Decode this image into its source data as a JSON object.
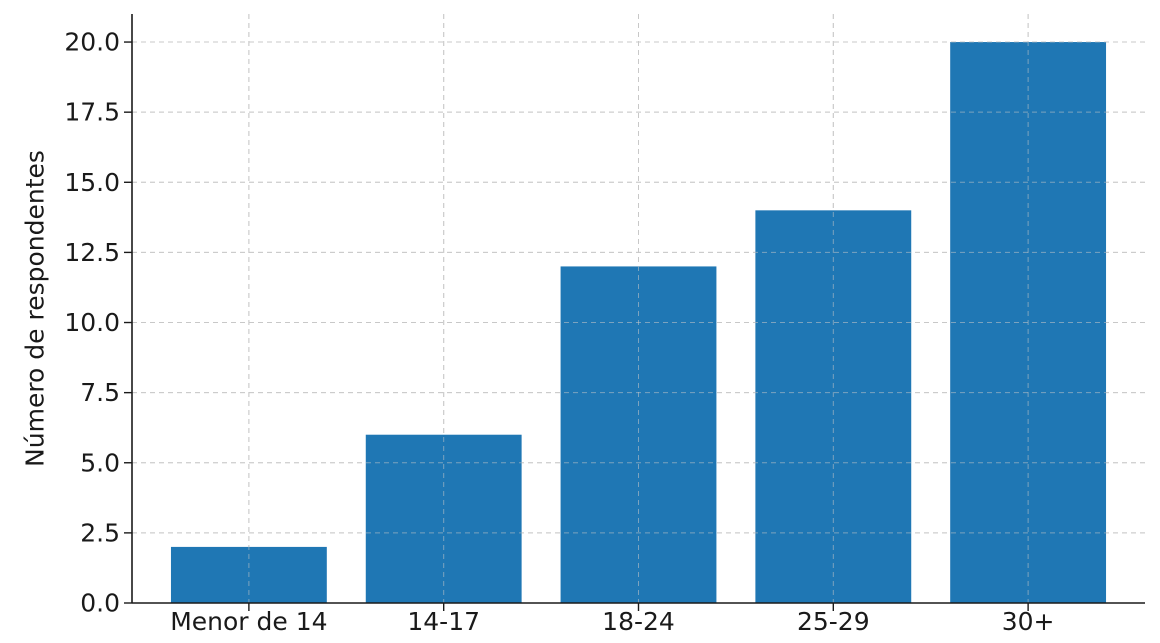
{
  "chart_data": {
    "type": "bar",
    "title": "",
    "xlabel": "",
    "ylabel": "Número de respondentes",
    "categories": [
      "Menor de 14",
      "14-17",
      "18-24",
      "25-29",
      "30+"
    ],
    "values": [
      2,
      6,
      12,
      14,
      20
    ],
    "ylim": [
      0,
      21
    ],
    "yticks": [
      "0.0",
      "2.5",
      "5.0",
      "7.5",
      "10.0",
      "12.5",
      "15.0",
      "17.5",
      "20.0"
    ],
    "grid": true,
    "colors": {
      "bar": "#1f77b4"
    }
  }
}
